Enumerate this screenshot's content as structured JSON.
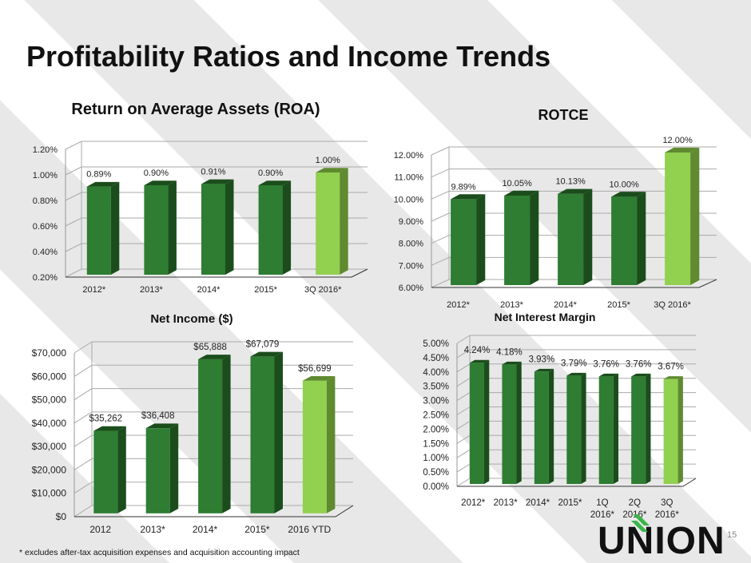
{
  "title": "Profitability Ratios and Income Trends",
  "footnote": "* excludes after-tax acquisition expenses and acquisition accounting impact",
  "page_number": "15",
  "logo_text": "UNION",
  "colors": {
    "bar": "#2e7d32",
    "bar_side": "#1b4d1c",
    "highlight": "#92d050",
    "highlight_side": "#5f8a30"
  },
  "chart_data": [
    {
      "type": "bar",
      "title": "Return on Average Assets (ROA)",
      "categories": [
        "2012*",
        "2013*",
        "2014*",
        "2015*",
        "3Q 2016*"
      ],
      "values": [
        0.89,
        0.9,
        0.91,
        0.9,
        1.0
      ],
      "labels": [
        "0.89%",
        "0.90%",
        "0.91%",
        "0.90%",
        "1.00%"
      ],
      "ylim": [
        0.2,
        1.2
      ],
      "yticks": [
        "0.20%",
        "0.40%",
        "0.60%",
        "0.80%",
        "1.00%",
        "1.20%"
      ]
    },
    {
      "type": "bar",
      "title": "ROTCE",
      "categories": [
        "2012*",
        "2013*",
        "2014*",
        "2015*",
        "3Q 2016*"
      ],
      "values": [
        9.89,
        10.05,
        10.13,
        10.0,
        12.0
      ],
      "labels": [
        "9.89%",
        "10.05%",
        "10.13%",
        "10.00%",
        "12.00%"
      ],
      "ylim": [
        6,
        12
      ],
      "yticks": [
        "6.00%",
        "7.00%",
        "8.00%",
        "9.00%",
        "10.00%",
        "11.00%",
        "12.00%"
      ]
    },
    {
      "type": "bar",
      "title": "Net Income ($)",
      "categories": [
        "2012",
        "2013*",
        "2014*",
        "2015*",
        "2016 YTD"
      ],
      "values": [
        35262,
        36408,
        65888,
        67079,
        56699
      ],
      "labels": [
        "$35,262",
        "$36,408",
        "$65,888",
        "$67,079",
        "$56,699"
      ],
      "ylim": [
        0,
        70000
      ],
      "yticks": [
        "$0",
        "$10,000",
        "$20,000",
        "$30,000",
        "$40,000",
        "$50,000",
        "$60,000",
        "$70,000"
      ]
    },
    {
      "type": "bar",
      "title": "Net Interest Margin",
      "categories": [
        "2012*",
        "2013*",
        "2014*",
        "2015*",
        "1Q 2016*",
        "2Q 2016*",
        "3Q 2016*"
      ],
      "values": [
        4.24,
        4.18,
        3.93,
        3.79,
        3.76,
        3.76,
        3.67
      ],
      "labels": [
        "4.24%",
        "4.18%",
        "3.93%",
        "3.79%",
        "3.76%",
        "3.76%",
        "3.67%"
      ],
      "ylim": [
        0,
        5
      ],
      "yticks": [
        "0.00%",
        "0.50%",
        "1.00%",
        "1.50%",
        "2.00%",
        "2.50%",
        "3.00%",
        "3.50%",
        "4.00%",
        "4.50%",
        "5.00%"
      ]
    }
  ]
}
